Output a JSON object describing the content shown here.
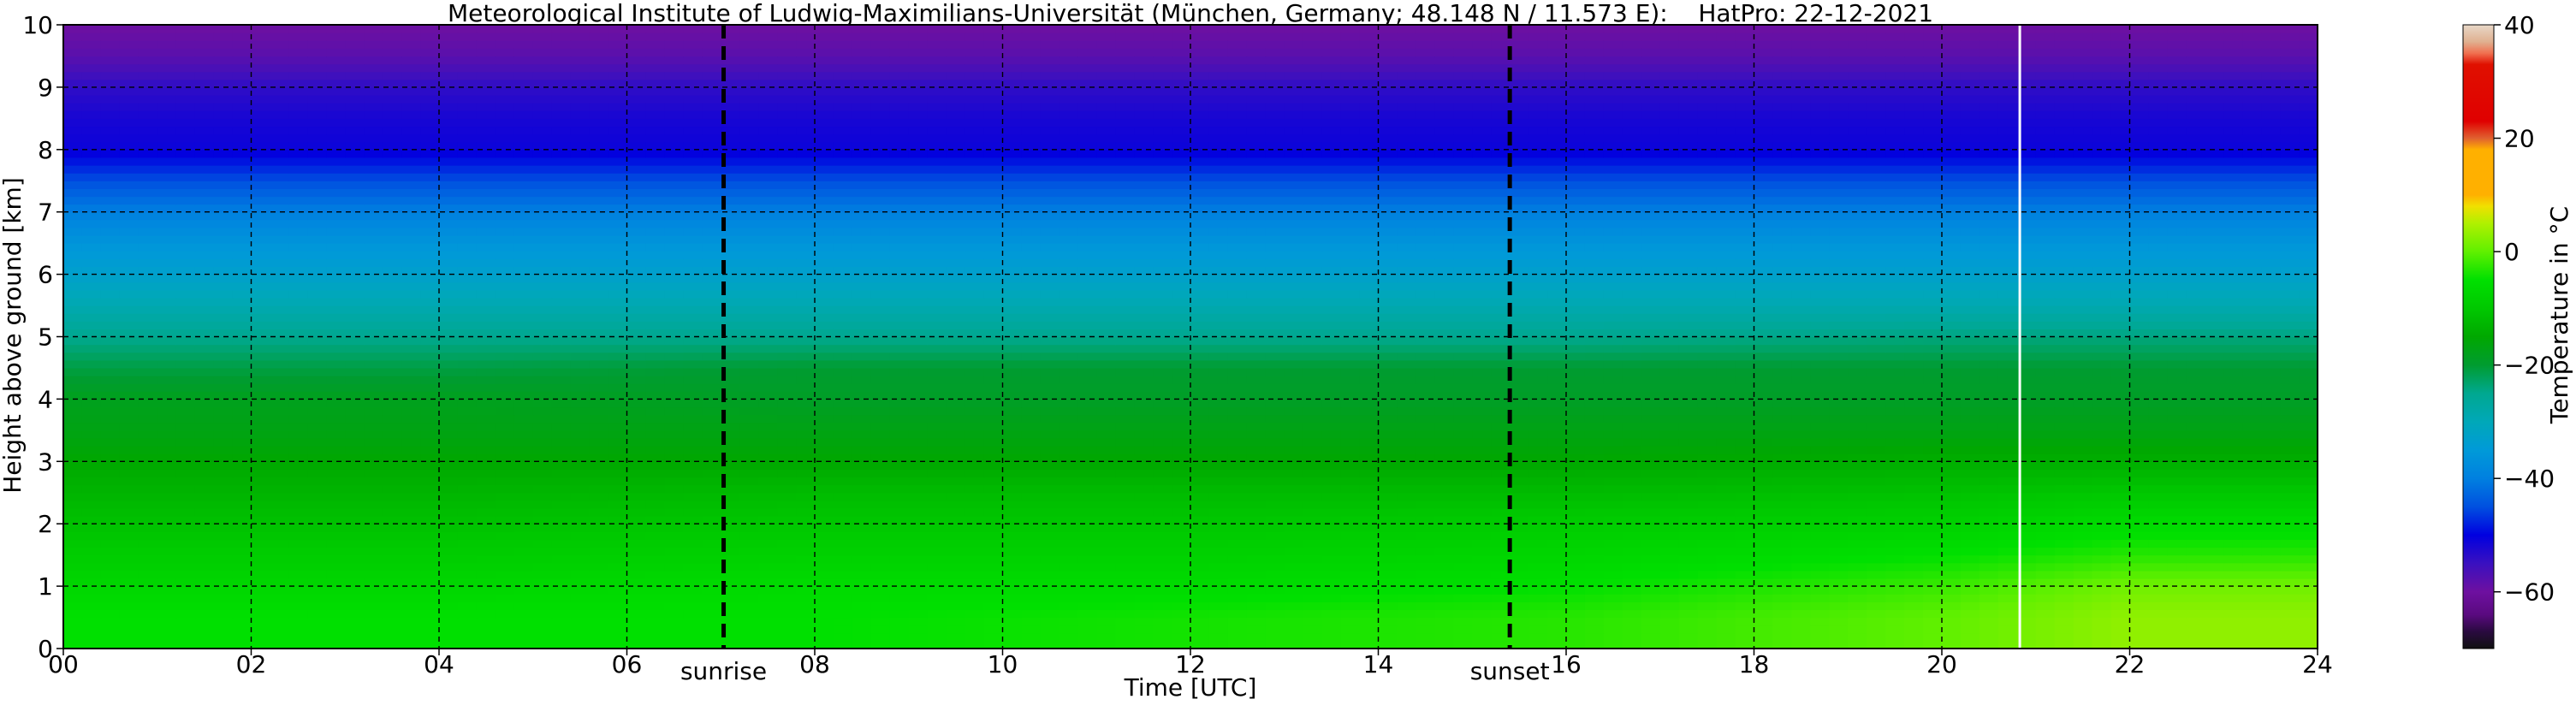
{
  "chart_data": {
    "type": "heatmap",
    "title": "Meteorological Institute of Ludwig-Maximilians-Universität (München, Germany; 48.148 N / 11.573 E):    HatPro: 22-12-2021",
    "xlabel": "Time [UTC]",
    "ylabel": "Height above ground [km]",
    "xlim": [
      0,
      24
    ],
    "ylim": [
      0,
      10
    ],
    "x_tick_values": [
      0,
      2,
      4,
      6,
      8,
      10,
      12,
      14,
      16,
      18,
      20,
      22,
      24
    ],
    "x_tick_labels": [
      "00",
      "02",
      "04",
      "06",
      "08",
      "10",
      "12",
      "14",
      "16",
      "18",
      "20",
      "22",
      "24"
    ],
    "y_tick_values": [
      0,
      1,
      2,
      3,
      4,
      5,
      6,
      7,
      8,
      9,
      10
    ],
    "y_tick_labels": [
      "0",
      "1",
      "2",
      "3",
      "4",
      "5",
      "6",
      "7",
      "8",
      "9",
      "10"
    ],
    "grid": true,
    "value_label": "Temperature in °C",
    "colorbar": {
      "label": "Temperature in $^\\circ$C",
      "range": [
        -70,
        40
      ],
      "tick_values": [
        -60,
        -40,
        -20,
        0,
        20,
        40
      ],
      "tick_labels": [
        "−60",
        "−40",
        "−20",
        "0",
        "20",
        "40"
      ],
      "stops": [
        {
          "value": -70,
          "color": "#111111"
        },
        {
          "value": -67,
          "color": "#2a0a40"
        },
        {
          "value": -64,
          "color": "#5a0a80"
        },
        {
          "value": -60,
          "color": "#6e10a0"
        },
        {
          "value": -55,
          "color": "#3a10c0"
        },
        {
          "value": -50,
          "color": "#0000e0"
        },
        {
          "value": -45,
          "color": "#0050e0"
        },
        {
          "value": -40,
          "color": "#0080e0"
        },
        {
          "value": -35,
          "color": "#009ad8"
        },
        {
          "value": -30,
          "color": "#00a8b8"
        },
        {
          "value": -25,
          "color": "#00a890"
        },
        {
          "value": -20,
          "color": "#009c30"
        },
        {
          "value": -15,
          "color": "#00a800"
        },
        {
          "value": -10,
          "color": "#00c800"
        },
        {
          "value": -5,
          "color": "#00e000"
        },
        {
          "value": 0,
          "color": "#60f000"
        },
        {
          "value": 5,
          "color": "#b0f000"
        },
        {
          "value": 8,
          "color": "#f0e000"
        },
        {
          "value": 10,
          "color": "#ffb000"
        },
        {
          "value": 18,
          "color": "#ffb000"
        },
        {
          "value": 20,
          "color": "#e06030"
        },
        {
          "value": 23,
          "color": "#e00000"
        },
        {
          "value": 33,
          "color": "#e01000"
        },
        {
          "value": 35,
          "color": "#f07050"
        },
        {
          "value": 37,
          "color": "#e0b090"
        },
        {
          "value": 40,
          "color": "#e8d8c8"
        }
      ]
    },
    "heights_km": [
      0,
      0.5,
      1,
      1.5,
      2,
      2.5,
      3,
      3.5,
      4,
      4.5,
      5,
      5.5,
      6,
      6.5,
      7,
      7.5,
      8,
      8.5,
      9,
      9.5,
      10
    ],
    "times_utc": [
      0,
      4,
      8,
      12,
      16,
      20,
      22,
      24
    ],
    "temperature_c": [
      [
        -5,
        -5,
        -5,
        -4,
        -3,
        0,
        3,
        3
      ],
      [
        -5,
        -5,
        -5,
        -4,
        -3,
        0,
        3,
        3
      ],
      [
        -7,
        -7,
        -6,
        -6,
        -5,
        -2,
        1,
        1
      ],
      [
        -9,
        -9,
        -8,
        -8,
        -7,
        -5,
        -3,
        -3
      ],
      [
        -11,
        -11,
        -10,
        -10,
        -9,
        -8,
        -6,
        -6
      ],
      [
        -13,
        -13,
        -12,
        -12,
        -12,
        -11,
        -10,
        -10
      ],
      [
        -15,
        -15,
        -15,
        -15,
        -15,
        -14,
        -14,
        -14
      ],
      [
        -17,
        -17,
        -17,
        -17,
        -17,
        -17,
        -17,
        -17
      ],
      [
        -18,
        -18,
        -19,
        -19,
        -19,
        -19,
        -19,
        -19
      ],
      [
        -21,
        -21,
        -20,
        -20,
        -20,
        -20,
        -20,
        -20
      ],
      [
        -25,
        -25,
        -25,
        -25,
        -25,
        -24,
        -24,
        -24
      ],
      [
        -29,
        -29,
        -29,
        -29,
        -29,
        -29,
        -29,
        -29
      ],
      [
        -33,
        -33,
        -33,
        -33,
        -33,
        -33,
        -33,
        -33
      ],
      [
        -36,
        -36,
        -36,
        -36,
        -36,
        -36,
        -36,
        -36
      ],
      [
        -40,
        -40,
        -40,
        -40,
        -40,
        -40,
        -40,
        -40
      ],
      [
        -45,
        -45,
        -45,
        -45,
        -45,
        -45,
        -45,
        -45
      ],
      [
        -51,
        -51,
        -51,
        -51,
        -51,
        -51,
        -51,
        -51
      ],
      [
        -52,
        -52,
        -52,
        -52,
        -52,
        -52,
        -52,
        -52
      ],
      [
        -54,
        -54,
        -54,
        -54,
        -54,
        -54,
        -54,
        -54
      ],
      [
        -58,
        -58,
        -58,
        -58,
        -58,
        -58,
        -58,
        -58
      ],
      [
        -60,
        -60,
        -60,
        -60,
        -60,
        -60,
        -60,
        -60
      ]
    ],
    "annotations": [
      {
        "label": "sunrise",
        "x": 7.03
      },
      {
        "label": "sunset",
        "x": 15.4
      }
    ],
    "marker_line": {
      "x": 20.83,
      "color": "#ffffff"
    }
  }
}
